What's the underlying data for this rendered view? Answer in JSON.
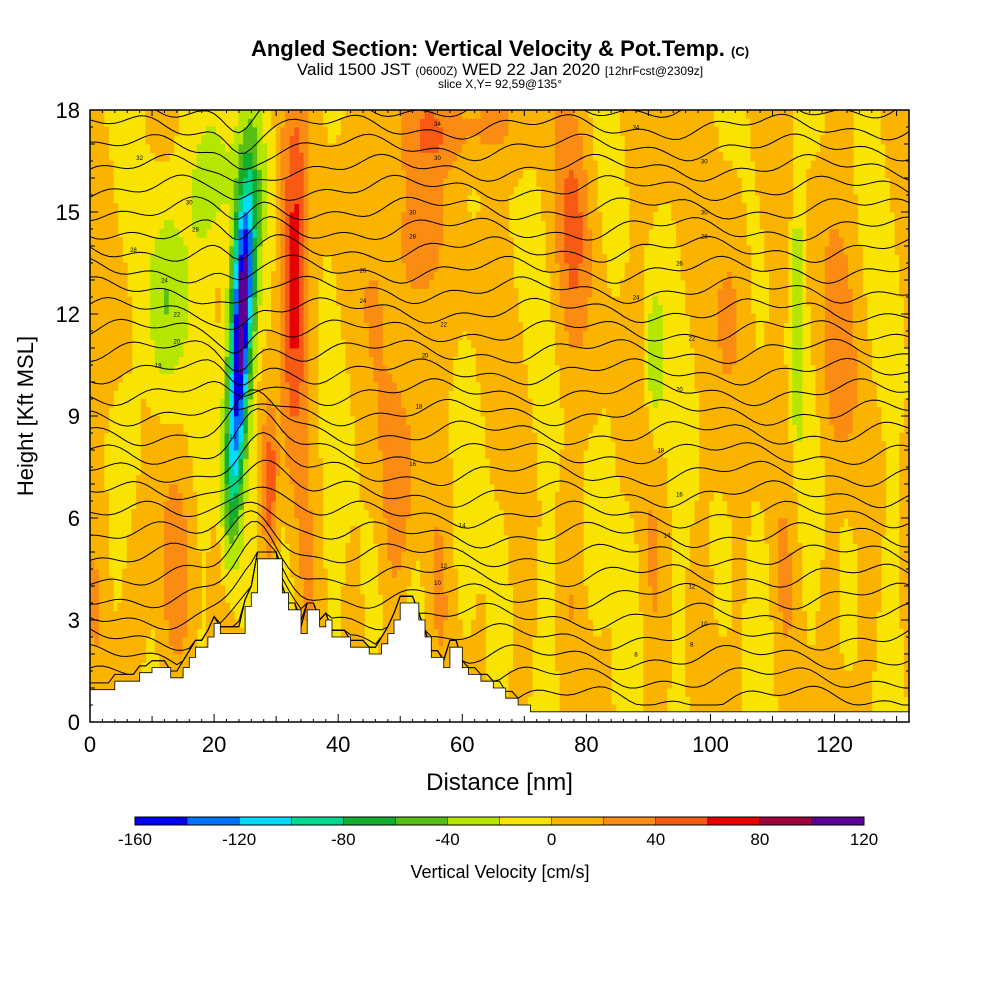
{
  "header": {
    "title": "Angled Section: Vertical Velocity & Pot.Temp.",
    "title_tag": "(C)",
    "valid_a": "Valid 1500 JST",
    "valid_utc": "(0600Z)",
    "valid_b": "WED 22 Jan 2020",
    "forecast": "[12hrFcst@2309z]",
    "slice": "slice X,Y= 92,59@135°"
  },
  "colors": {
    "base": "#f8e400",
    "terrain": "#ffffff"
  },
  "chart_data": {
    "type": "heatmap",
    "xlabel": "Distance [nm]",
    "ylabel": "Height [Kft MSL]",
    "xlim": [
      0,
      132
    ],
    "ylim": [
      0,
      18
    ],
    "xticks": [
      0,
      20,
      40,
      60,
      80,
      100,
      120
    ],
    "yticks": [
      0,
      3,
      6,
      9,
      12,
      15,
      18
    ],
    "colorbar": {
      "label": "Vertical Velocity [cm/s]",
      "ticks": [
        -160,
        -120,
        -80,
        -40,
        0,
        40,
        80,
        120
      ],
      "bins": [
        {
          "from": -160,
          "to": -140,
          "color": "#0000f0"
        },
        {
          "from": -140,
          "to": -120,
          "color": "#0070ff"
        },
        {
          "from": -120,
          "to": -100,
          "color": "#00dcff"
        },
        {
          "from": -100,
          "to": -80,
          "color": "#00d68c"
        },
        {
          "from": -80,
          "to": -60,
          "color": "#12ae2e"
        },
        {
          "from": -60,
          "to": -40,
          "color": "#56be14"
        },
        {
          "from": -40,
          "to": -20,
          "color": "#b4e600"
        },
        {
          "from": -20,
          "to": 0,
          "color": "#f8e400"
        },
        {
          "from": 0,
          "to": 20,
          "color": "#fab400"
        },
        {
          "from": 20,
          "to": 40,
          "color": "#fa8c14"
        },
        {
          "from": 40,
          "to": 60,
          "color": "#f85a14"
        },
        {
          "from": 60,
          "to": 80,
          "color": "#e60000"
        },
        {
          "from": 80,
          "to": 100,
          "color": "#a0003c"
        },
        {
          "from": 100,
          "to": 120,
          "color": "#5a0096"
        }
      ]
    },
    "terrain_profile": [
      [
        0,
        0.95
      ],
      [
        4,
        0.95
      ],
      [
        4,
        1.2
      ],
      [
        8,
        1.2
      ],
      [
        8,
        1.45
      ],
      [
        10,
        1.45
      ],
      [
        10,
        1.6
      ],
      [
        13,
        1.6
      ],
      [
        13,
        1.3
      ],
      [
        15,
        1.3
      ],
      [
        15,
        1.6
      ],
      [
        16,
        1.6
      ],
      [
        16,
        1.9
      ],
      [
        17,
        1.9
      ],
      [
        17,
        2.2
      ],
      [
        19,
        2.2
      ],
      [
        19,
        2.5
      ],
      [
        20,
        2.5
      ],
      [
        20,
        2.9
      ],
      [
        21,
        2.9
      ],
      [
        21,
        2.6
      ],
      [
        25,
        2.6
      ],
      [
        25,
        3.4
      ],
      [
        26,
        3.4
      ],
      [
        26,
        3.8
      ],
      [
        27,
        3.8
      ],
      [
        27,
        4.8
      ],
      [
        31,
        4.8
      ],
      [
        31,
        3.8
      ],
      [
        32,
        3.8
      ],
      [
        32,
        3.3
      ],
      [
        34,
        3.3
      ],
      [
        34,
        2.6
      ],
      [
        35,
        2.6
      ],
      [
        35,
        3.3
      ],
      [
        37,
        3.3
      ],
      [
        37,
        2.8
      ],
      [
        38,
        2.8
      ],
      [
        38,
        3.0
      ],
      [
        39,
        3.0
      ],
      [
        39,
        2.5
      ],
      [
        42,
        2.5
      ],
      [
        42,
        2.2
      ],
      [
        45,
        2.2
      ],
      [
        45,
        2.0
      ],
      [
        47,
        2.0
      ],
      [
        47,
        2.3
      ],
      [
        48,
        2.3
      ],
      [
        48,
        2.6
      ],
      [
        49,
        2.6
      ],
      [
        49,
        3.0
      ],
      [
        50,
        3.0
      ],
      [
        50,
        3.5
      ],
      [
        53,
        3.5
      ],
      [
        53,
        3.0
      ],
      [
        54,
        3.0
      ],
      [
        54,
        2.5
      ],
      [
        55,
        2.5
      ],
      [
        55,
        1.9
      ],
      [
        57,
        1.9
      ],
      [
        57,
        1.6
      ],
      [
        58,
        1.6
      ],
      [
        58,
        2.2
      ],
      [
        60,
        2.2
      ],
      [
        60,
        1.6
      ],
      [
        61,
        1.6
      ],
      [
        61,
        1.4
      ],
      [
        63,
        1.4
      ],
      [
        63,
        1.2
      ],
      [
        65,
        1.2
      ],
      [
        65,
        1.0
      ],
      [
        67,
        1.0
      ],
      [
        67,
        0.7
      ],
      [
        69,
        0.7
      ],
      [
        69,
        0.5
      ],
      [
        71,
        0.5
      ],
      [
        71,
        0.3
      ],
      [
        132,
        0.3
      ]
    ],
    "features": [
      {
        "label": "downdraft core",
        "x": 24.5,
        "y": 12.5,
        "w_min": -160
      },
      {
        "label": "updraft",
        "x": 33,
        "y": 12,
        "w_max": 60
      },
      {
        "label": "updraft",
        "x": 51,
        "y": 14,
        "w_max": 40
      },
      {
        "label": "updraft",
        "x": 78,
        "y": 14.5,
        "w_max": 40
      },
      {
        "label": "downdraft",
        "x": 91,
        "y": 10.5,
        "w_min": -40
      },
      {
        "label": "downdraft",
        "x": 114,
        "y": 12,
        "w_min": -40
      }
    ],
    "isentropes": {
      "count": 30,
      "labels": [
        {
          "text": "34",
          "x": 56,
          "y": 17.6
        },
        {
          "text": "34",
          "x": 88,
          "y": 17.5
        },
        {
          "text": "32",
          "x": 8,
          "y": 16.6
        },
        {
          "text": "30",
          "x": 56,
          "y": 16.6
        },
        {
          "text": "30",
          "x": 99,
          "y": 16.5
        },
        {
          "text": "30",
          "x": 16,
          "y": 15.3
        },
        {
          "text": "30",
          "x": 52,
          "y": 15.0
        },
        {
          "text": "30",
          "x": 99,
          "y": 15.0
        },
        {
          "text": "28",
          "x": 17,
          "y": 14.5
        },
        {
          "text": "28",
          "x": 52,
          "y": 14.3
        },
        {
          "text": "28",
          "x": 99,
          "y": 14.3
        },
        {
          "text": "28",
          "x": 7,
          "y": 13.9
        },
        {
          "text": "26",
          "x": 95,
          "y": 13.5
        },
        {
          "text": "26",
          "x": 44,
          "y": 13.3
        },
        {
          "text": "24",
          "x": 12,
          "y": 13.0
        },
        {
          "text": "24",
          "x": 44,
          "y": 12.4
        },
        {
          "text": "24",
          "x": 88,
          "y": 12.5
        },
        {
          "text": "22",
          "x": 14,
          "y": 12.0
        },
        {
          "text": "22",
          "x": 57,
          "y": 11.7
        },
        {
          "text": "22",
          "x": 97,
          "y": 11.3
        },
        {
          "text": "20",
          "x": 14,
          "y": 11.2
        },
        {
          "text": "20",
          "x": 54,
          "y": 10.8
        },
        {
          "text": "20",
          "x": 95,
          "y": 9.8
        },
        {
          "text": "18",
          "x": 11,
          "y": 10.5
        },
        {
          "text": "18",
          "x": 53,
          "y": 9.3
        },
        {
          "text": "18",
          "x": 92,
          "y": 8.0
        },
        {
          "text": "16",
          "x": 23,
          "y": 8.4
        },
        {
          "text": "16",
          "x": 52,
          "y": 7.6
        },
        {
          "text": "16",
          "x": 95,
          "y": 6.7
        },
        {
          "text": "14",
          "x": 60,
          "y": 5.8
        },
        {
          "text": "14",
          "x": 93,
          "y": 5.5
        },
        {
          "text": "12",
          "x": 57,
          "y": 4.6
        },
        {
          "text": "12",
          "x": 97,
          "y": 4.0
        },
        {
          "text": "10",
          "x": 56,
          "y": 4.1
        },
        {
          "text": "10",
          "x": 99,
          "y": 2.9
        },
        {
          "text": "8",
          "x": 97,
          "y": 2.3
        },
        {
          "text": "8",
          "x": 88,
          "y": 2.0
        }
      ]
    }
  }
}
